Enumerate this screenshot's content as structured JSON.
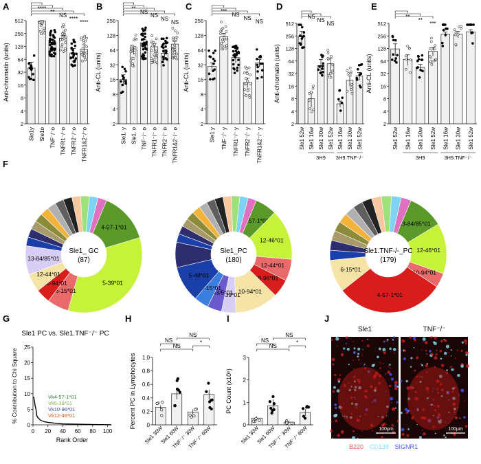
{
  "figure": {
    "scale_bar": "100μm",
    "colors": {
      "bar_fill": "#f0f0f0",
      "axis": "#000000",
      "vk_legend": [
        "#2e7d32",
        "#7cb342",
        "#3949ab",
        "#e65100"
      ],
      "micro_labels": [
        "#ff5a5a",
        "#7fe7ff",
        "#4a5bff"
      ]
    }
  },
  "chart_data": [
    {
      "panel": "A",
      "type": "bar",
      "ylabel": "Anti-chromatin (units)",
      "yscale": "log2",
      "ylim": [
        2,
        512
      ],
      "yticks": [
        "2",
        "4",
        "8",
        "16",
        "32",
        "64",
        "128",
        "256",
        "512"
      ],
      "categories": [
        "Sle1y",
        "Sle1o",
        "TNF-/-o",
        "TNFR1-/-o",
        "TNFR2-/-o",
        "TNFR1&2-/-o"
      ],
      "values": [
        40,
        500,
        160,
        200,
        90,
        110
      ],
      "errors": [
        15,
        10,
        25,
        30,
        25,
        30
      ],
      "points_per_group": [
        13,
        18,
        40,
        22,
        24,
        22
      ],
      "significance": [
        "****",
        "**",
        "NS",
        "****",
        "****"
      ]
    },
    {
      "panel": "B",
      "type": "bar",
      "ylabel": "Anti-CL (units)",
      "yscale": "log2",
      "ylim": [
        2,
        256
      ],
      "yticks": [
        "2",
        "4",
        "8",
        "16",
        "32",
        "64",
        "128",
        "256"
      ],
      "categories": [
        "Sle1. y",
        "Sle1. o",
        "TNF-/- o",
        "TNFR1-/- o",
        "TNFR2-/- o",
        "TNFR1&2-/- o"
      ],
      "values": [
        16,
        64,
        90,
        75,
        55,
        85
      ],
      "errors": [
        4,
        12,
        15,
        12,
        10,
        12
      ],
      "points_per_group": [
        12,
        24,
        40,
        24,
        22,
        24
      ],
      "significance": [
        "**",
        "NS",
        "NS",
        "NS",
        "NS"
      ]
    },
    {
      "panel": "C",
      "type": "bar",
      "ylabel": "Anti-CL (units)",
      "yscale": "log2",
      "ylim": [
        2,
        256
      ],
      "yticks": [
        "2",
        "4",
        "8",
        "16",
        "32",
        "64",
        "128",
        "256"
      ],
      "categories": [
        "Sle1 y",
        "TNF-/- y",
        "TNFR1-/- y",
        "TNFR2-/- y",
        "TNFR1&2-/- y"
      ],
      "values": [
        30,
        120,
        45,
        14,
        35
      ],
      "errors": [
        5,
        20,
        10,
        3,
        6
      ],
      "points_per_group": [
        14,
        20,
        26,
        20,
        14
      ],
      "significance": [
        "***",
        "NS",
        "NS",
        "NS"
      ]
    },
    {
      "panel": "D",
      "type": "bar",
      "ylabel": "Anti-chromatin (units)",
      "yscale": "log2",
      "ylim": [
        2,
        512
      ],
      "yticks": [
        "2",
        "4",
        "8",
        "16",
        "32",
        "64",
        "128",
        "256",
        "512"
      ],
      "categories": [
        "Sle1 52w",
        "Sle1 16w",
        "Sle1 30w",
        "Sle1 52w",
        "Sle1 16w",
        "Sle1 30w",
        "Sle1 52w"
      ],
      "group_labels": [
        "3H9",
        "3H9.TNF-/-"
      ],
      "values": [
        250,
        8,
        50,
        55,
        6,
        22,
        28
      ],
      "errors": [
        80,
        3,
        20,
        20,
        1,
        6,
        6
      ],
      "points_per_group": [
        14,
        8,
        12,
        12,
        6,
        10,
        10
      ],
      "significance": [
        "NS",
        "NS",
        "NS"
      ]
    },
    {
      "panel": "E",
      "type": "bar",
      "ylabel": "Anti-CL (units)",
      "yscale": "log2",
      "ylim": [
        2,
        512
      ],
      "yticks": [
        "2",
        "4",
        "8",
        "16",
        "32",
        "64",
        "128",
        "256",
        "512"
      ],
      "categories": [
        "Sle1 52w",
        "Sle1 16w",
        "Sle1 30w",
        "Sle1 52w",
        "Sle1 16w",
        "Sle1 30w",
        "Sle1 52w"
      ],
      "group_labels": [
        "3H9",
        "3H9.TNF-/-"
      ],
      "values": [
        125,
        70,
        45,
        110,
        280,
        280,
        320
      ],
      "errors": [
        40,
        20,
        8,
        25,
        35,
        50,
        40
      ],
      "points_per_group": [
        10,
        8,
        12,
        16,
        10,
        10,
        10
      ],
      "significance": [
        "**",
        "**",
        "***"
      ]
    },
    {
      "panel": "F",
      "type": "pie",
      "charts": [
        {
          "center": [
            "Sle1_ GC",
            "(87)"
          ],
          "labels": [
            "4-57-1*01",
            "5-39*01",
            "6-15*01",
            "10-94*01",
            "12-44*01",
            "13-84/85*01"
          ]
        },
        {
          "center": [
            "Sle1_PC",
            "(180)"
          ],
          "labels": [
            "13-84/85*01",
            "4-57-1*01",
            "12-46*01",
            "12-44*01",
            "10-96*01",
            "10-94*01",
            "5-39*01",
            "5-43/5*01",
            "6-15*01",
            "5-48*01"
          ]
        },
        {
          "center": [
            "Sle1.TNF-/-_PC",
            "(179)"
          ],
          "labels": [
            "13-84/85*01",
            "12-46*01",
            "10-94*01",
            "4-57-1*01",
            "6-15*01"
          ]
        }
      ]
    },
    {
      "panel": "G",
      "type": "line",
      "title": "Sle1 PC vs. Sle1.TNF-/- PC",
      "xlabel": "Rank Order",
      "ylabel": "% Contribution to Chi Square",
      "xlim": [
        0,
        105
      ],
      "ylim": [
        0,
        25
      ],
      "xticks": [
        "0",
        "20",
        "40",
        "60",
        "80",
        "100"
      ],
      "yticks": [
        "0",
        "5",
        "10",
        "15",
        "20",
        "25"
      ],
      "x": [
        1,
        2,
        3,
        4,
        5,
        6,
        8,
        10,
        15,
        20,
        30,
        40,
        60,
        80,
        100,
        105
      ],
      "y": [
        9,
        7.5,
        6,
        5,
        3,
        2.5,
        2,
        1.5,
        1,
        0.8,
        0.5,
        0.3,
        0.2,
        0.1,
        0.05,
        0
      ],
      "annotations": [
        "Vk4-57-1*01",
        "Vk5-39*01",
        "Vk10-96*01",
        "Vk12-46*01"
      ]
    },
    {
      "panel": "H",
      "type": "bar",
      "ylabel": "Percent PC in Lymphocytes",
      "ylim": [
        0,
        1.0
      ],
      "yticks": [
        "0",
        "0.2",
        "0.4",
        "0.6",
        "0.8",
        "1.0"
      ],
      "categories": [
        "Sle1 30W",
        "Sle1 60W",
        "TNF-/- 30W",
        "TNF-/- 60W"
      ],
      "values": [
        0.26,
        0.46,
        0.19,
        0.45
      ],
      "errors": [
        0.03,
        0.08,
        0.04,
        0.07
      ],
      "points_per_group": [
        5,
        7,
        5,
        7
      ],
      "significance": [
        "NS",
        "NS",
        "NS",
        "*"
      ]
    },
    {
      "panel": "I",
      "type": "bar",
      "ylabel": "PC Count (x10⁶)",
      "ylim": [
        0,
        3
      ],
      "yticks": [
        "0",
        "1",
        "2",
        "3"
      ],
      "categories": [
        "Sle1 30W",
        "Sle1 60W",
        "TNF-/- 30W",
        "TNF-/- 60W"
      ],
      "values": [
        0.3,
        0.85,
        0.12,
        0.55
      ],
      "errors": [
        0.08,
        0.28,
        0.05,
        0.15
      ],
      "points_per_group": [
        5,
        7,
        5,
        6
      ],
      "significance": [
        "NS",
        "NS",
        "NS",
        "*"
      ]
    },
    {
      "panel": "J",
      "type": "image",
      "titles": [
        "Sle1",
        "TNF-/-"
      ],
      "legend": [
        "B220",
        "CD138",
        "SIGNR1"
      ]
    }
  ]
}
